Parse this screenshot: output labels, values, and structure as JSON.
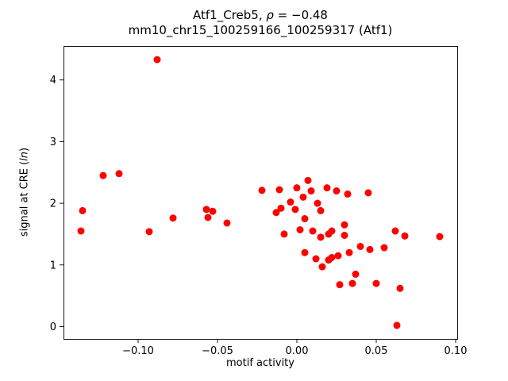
{
  "figure": {
    "title_pre": "Atf1_Creb5, ",
    "title_rho": "ρ",
    "title_post": " = −0.48",
    "title_line2": "mm10_chr15_100259166_100259317 (Atf1)",
    "xlabel": "motif activity",
    "ylabel_pre": "signal at CRE (",
    "ylabel_italic": "ln",
    "ylabel_post": ")"
  },
  "chart_data": {
    "type": "scatter",
    "title": "Atf1_Creb5, ρ = −0.48",
    "subtitle": "mm10_chr15_100259166_100259317 (Atf1)",
    "xlabel": "motif activity",
    "ylabel": "signal at CRE (ln)",
    "marker_color": "#ff0000",
    "marker_size_px": 9,
    "grid": false,
    "legend": null,
    "xlim": [
      -0.147,
      0.101
    ],
    "ylim": [
      -0.2,
      4.55
    ],
    "xticks": [
      -0.1,
      -0.05,
      0.0,
      0.05,
      0.1
    ],
    "xtick_labels": [
      "−0.10",
      "−0.05",
      "0.00",
      "0.05",
      "0.10"
    ],
    "yticks": [
      0,
      1,
      2,
      3,
      4
    ],
    "ytick_labels": [
      "0",
      "1",
      "2",
      "3",
      "4"
    ],
    "points": [
      [
        -0.135,
        1.88
      ],
      [
        -0.136,
        1.55
      ],
      [
        -0.122,
        2.45
      ],
      [
        -0.112,
        2.48
      ],
      [
        -0.088,
        4.33
      ],
      [
        -0.093,
        1.54
      ],
      [
        -0.078,
        1.76
      ],
      [
        -0.057,
        1.9
      ],
      [
        -0.053,
        1.87
      ],
      [
        -0.056,
        1.77
      ],
      [
        -0.044,
        1.68
      ],
      [
        -0.022,
        2.21
      ],
      [
        -0.011,
        2.22
      ],
      [
        -0.01,
        1.92
      ],
      [
        -0.013,
        1.85
      ],
      [
        -0.008,
        1.5
      ],
      [
        -0.004,
        2.02
      ],
      [
        0.0,
        2.25
      ],
      [
        -0.001,
        1.9
      ],
      [
        0.002,
        1.57
      ],
      [
        0.004,
        2.1
      ],
      [
        0.005,
        1.75
      ],
      [
        0.005,
        1.2
      ],
      [
        0.007,
        2.37
      ],
      [
        0.009,
        2.2
      ],
      [
        0.01,
        1.55
      ],
      [
        0.012,
        1.1
      ],
      [
        0.013,
        2.0
      ],
      [
        0.015,
        1.88
      ],
      [
        0.015,
        1.45
      ],
      [
        0.016,
        0.97
      ],
      [
        0.019,
        2.25
      ],
      [
        0.02,
        1.5
      ],
      [
        0.02,
        1.08
      ],
      [
        0.022,
        1.55
      ],
      [
        0.022,
        1.12
      ],
      [
        0.025,
        2.2
      ],
      [
        0.026,
        1.15
      ],
      [
        0.027,
        0.68
      ],
      [
        0.03,
        1.65
      ],
      [
        0.03,
        1.48
      ],
      [
        0.032,
        2.15
      ],
      [
        0.033,
        1.2
      ],
      [
        0.035,
        0.7
      ],
      [
        0.037,
        0.85
      ],
      [
        0.04,
        1.3
      ],
      [
        0.045,
        2.17
      ],
      [
        0.046,
        1.25
      ],
      [
        0.05,
        0.7
      ],
      [
        0.055,
        1.28
      ],
      [
        0.062,
        1.55
      ],
      [
        0.063,
        0.02
      ],
      [
        0.065,
        0.62
      ],
      [
        0.068,
        1.47
      ],
      [
        0.09,
        1.46
      ]
    ]
  }
}
